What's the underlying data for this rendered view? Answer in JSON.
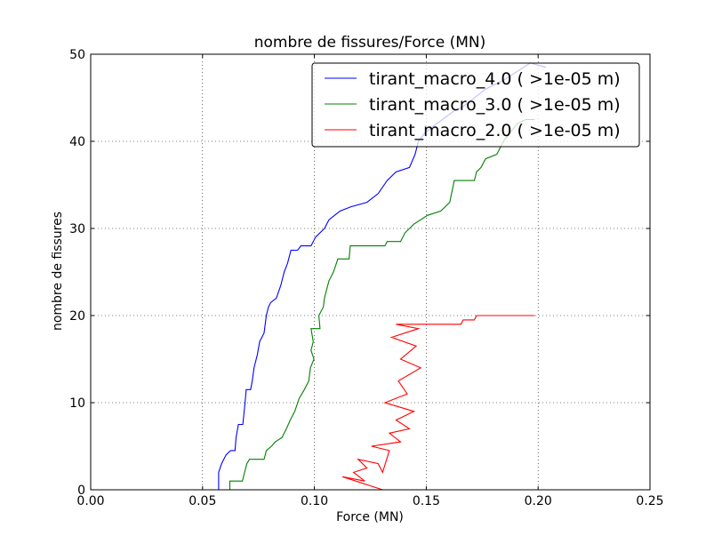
{
  "chart_data": {
    "type": "line",
    "title": "nombre de fissures/Force (MN)",
    "xlabel": "Force (MN)",
    "ylabel": "nombre de fissures",
    "xlim": [
      0.0,
      0.25
    ],
    "ylim": [
      0,
      50
    ],
    "xticks": [
      "0.00",
      "0.05",
      "0.10",
      "0.15",
      "0.20",
      "0.25"
    ],
    "yticks": [
      "0",
      "10",
      "20",
      "30",
      "40",
      "50"
    ],
    "grid": true,
    "legend_position": "top-right",
    "series": [
      {
        "name": "tirant_macro_4.0 ( >1e-05 m)",
        "color": "#0000ff",
        "points": [
          [
            0.0572,
            0
          ],
          [
            0.0572,
            2
          ],
          [
            0.0585,
            3
          ],
          [
            0.0605,
            4
          ],
          [
            0.0625,
            4.5
          ],
          [
            0.0645,
            4.5
          ],
          [
            0.065,
            6
          ],
          [
            0.066,
            7.5
          ],
          [
            0.068,
            7.5
          ],
          [
            0.069,
            10
          ],
          [
            0.0695,
            11.5
          ],
          [
            0.0715,
            11.5
          ],
          [
            0.0722,
            12.5
          ],
          [
            0.073,
            14
          ],
          [
            0.0745,
            15.5
          ],
          [
            0.0755,
            17
          ],
          [
            0.0775,
            18
          ],
          [
            0.0785,
            20
          ],
          [
            0.0795,
            21
          ],
          [
            0.0805,
            21.5
          ],
          [
            0.083,
            22
          ],
          [
            0.085,
            23.5
          ],
          [
            0.0865,
            25
          ],
          [
            0.088,
            26
          ],
          [
            0.0895,
            27.5
          ],
          [
            0.0925,
            27.5
          ],
          [
            0.094,
            28
          ],
          [
            0.0985,
            28
          ],
          [
            0.1005,
            29
          ],
          [
            0.1025,
            29.5
          ],
          [
            0.1045,
            30
          ],
          [
            0.1065,
            31
          ],
          [
            0.109,
            31.5
          ],
          [
            0.1115,
            32
          ],
          [
            0.1165,
            32.5
          ],
          [
            0.1235,
            33
          ],
          [
            0.1285,
            34
          ],
          [
            0.1325,
            35.5
          ],
          [
            0.1365,
            36.5
          ],
          [
            0.1425,
            37
          ],
          [
            0.145,
            38.5
          ],
          [
            0.1465,
            40
          ],
          [
            0.1495,
            41
          ],
          [
            0.1545,
            42
          ],
          [
            0.1625,
            43.5
          ],
          [
            0.1665,
            44
          ],
          [
            0.1715,
            45
          ],
          [
            0.1765,
            46
          ],
          [
            0.1845,
            47
          ],
          [
            0.1905,
            48
          ],
          [
            0.1965,
            49
          ],
          [
            0.2035,
            48.5
          ]
        ]
      },
      {
        "name": "tirant_macro_3.0 ( >1e-05 m)",
        "color": "#008000",
        "points": [
          [
            0.0622,
            0
          ],
          [
            0.0622,
            1
          ],
          [
            0.0678,
            1
          ],
          [
            0.0688,
            2
          ],
          [
            0.0698,
            3
          ],
          [
            0.071,
            3.5
          ],
          [
            0.0775,
            3.5
          ],
          [
            0.0785,
            4.5
          ],
          [
            0.0808,
            5
          ],
          [
            0.0825,
            5.5
          ],
          [
            0.0855,
            6
          ],
          [
            0.0875,
            7
          ],
          [
            0.0892,
            8
          ],
          [
            0.0912,
            9
          ],
          [
            0.0932,
            10.5
          ],
          [
            0.0955,
            11.5
          ],
          [
            0.0975,
            12.5
          ],
          [
            0.0982,
            14
          ],
          [
            0.0998,
            15
          ],
          [
            0.0985,
            16
          ],
          [
            0.0995,
            17
          ],
          [
            0.0985,
            18.5
          ],
          [
            0.1025,
            18.5
          ],
          [
            0.102,
            20
          ],
          [
            0.104,
            21
          ],
          [
            0.1045,
            22
          ],
          [
            0.1055,
            23
          ],
          [
            0.1065,
            24
          ],
          [
            0.1085,
            25
          ],
          [
            0.1105,
            26.5
          ],
          [
            0.1155,
            26.5
          ],
          [
            0.116,
            28
          ],
          [
            0.1315,
            28
          ],
          [
            0.1325,
            28.5
          ],
          [
            0.1385,
            28.5
          ],
          [
            0.1405,
            29.5
          ],
          [
            0.1445,
            30.5
          ],
          [
            0.1505,
            31.5
          ],
          [
            0.1565,
            32
          ],
          [
            0.1605,
            33
          ],
          [
            0.1625,
            35.5
          ],
          [
            0.1715,
            35.5
          ],
          [
            0.1725,
            36.5
          ],
          [
            0.1745,
            37
          ],
          [
            0.1765,
            38
          ],
          [
            0.1815,
            38.5
          ],
          [
            0.1845,
            40
          ],
          [
            0.1875,
            41
          ],
          [
            0.1905,
            42
          ],
          [
            0.1945,
            42.5
          ],
          [
            0.1985,
            42.5
          ]
        ]
      },
      {
        "name": "tirant_macro_2.0 ( >1e-05 m)",
        "color": "#ff0000",
        "points": [
          [
            0.1305,
            0
          ],
          [
            0.1125,
            1.5
          ],
          [
            0.1225,
            1
          ],
          [
            0.1175,
            2
          ],
          [
            0.1235,
            2.5
          ],
          [
            0.1195,
            3.5
          ],
          [
            0.1285,
            3
          ],
          [
            0.1305,
            2
          ],
          [
            0.1335,
            4.5
          ],
          [
            0.1255,
            5
          ],
          [
            0.1385,
            5.5
          ],
          [
            0.1335,
            6.5
          ],
          [
            0.1425,
            7
          ],
          [
            0.1365,
            8
          ],
          [
            0.1445,
            9
          ],
          [
            0.1315,
            10
          ],
          [
            0.1415,
            11
          ],
          [
            0.1375,
            12.5
          ],
          [
            0.1475,
            14
          ],
          [
            0.1385,
            15
          ],
          [
            0.1455,
            16.5
          ],
          [
            0.1345,
            17.5
          ],
          [
            0.1465,
            18.5
          ],
          [
            0.1365,
            19
          ],
          [
            0.1655,
            19
          ],
          [
            0.1665,
            19.5
          ],
          [
            0.1715,
            19.5
          ],
          [
            0.1725,
            20
          ],
          [
            0.1985,
            20
          ]
        ]
      }
    ]
  }
}
